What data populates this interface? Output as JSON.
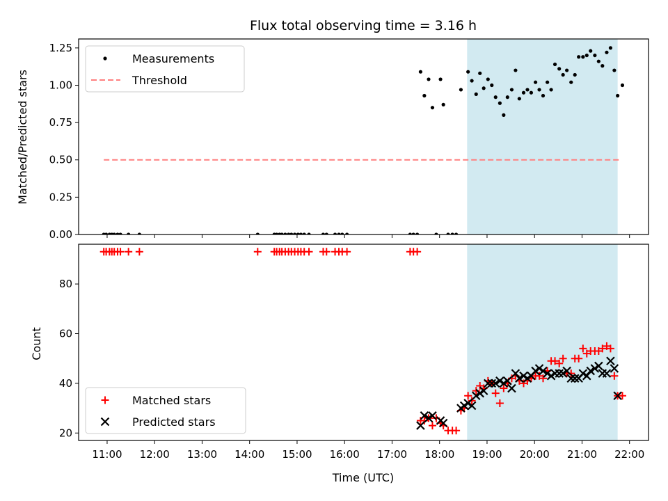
{
  "chart_data": {
    "title": "Flux total observing time = 3.16 h",
    "xlabel": "Time (UTC)",
    "x_unit": "hour of day (UTC)",
    "xlim": [
      10.4,
      22.4
    ],
    "x_ticks": [
      11,
      12,
      13,
      14,
      15,
      16,
      17,
      18,
      19,
      20,
      21,
      22
    ],
    "x_tick_labels": [
      "11:00",
      "12:00",
      "13:00",
      "14:00",
      "15:00",
      "16:00",
      "17:00",
      "18:00",
      "19:00",
      "20:00",
      "21:00",
      "22:00"
    ],
    "shaded_interval": {
      "x": [
        18.58,
        21.75
      ],
      "color": "#add8e6"
    },
    "panels": [
      {
        "name": "ratio",
        "type": "scatter",
        "ylabel": "Matched/Predicted stars",
        "ylim": [
          0,
          1.31
        ],
        "y_ticks": [
          0,
          0.25,
          0.5,
          0.75,
          1.0,
          1.25
        ],
        "y_tick_labels": [
          "0.00",
          "0.25",
          "0.50",
          "0.75",
          "1.00",
          "1.25"
        ],
        "legend_position": "upper left",
        "series": [
          {
            "name": "Measurements",
            "type": "scatter",
            "marker": "dot",
            "color": "#000000",
            "x": [
              10.93,
              10.98,
              11.05,
              11.1,
              11.15,
              11.22,
              11.28,
              11.45,
              11.68,
              14.17,
              14.52,
              14.57,
              14.63,
              14.68,
              14.75,
              14.82,
              14.88,
              14.95,
              15.02,
              15.08,
              15.15,
              15.25,
              15.55,
              15.62,
              15.8,
              15.88,
              15.95,
              16.05,
              17.38,
              17.45,
              17.53,
              17.6,
              17.68,
              17.77,
              17.85,
              17.93,
              18.02,
              18.08,
              18.18,
              18.27,
              18.35,
              18.45,
              18.6,
              18.68,
              18.77,
              18.85,
              18.93,
              19.02,
              19.1,
              19.18,
              19.27,
              19.35,
              19.43,
              19.52,
              19.6,
              19.68,
              19.77,
              19.85,
              19.93,
              20.02,
              20.1,
              20.18,
              20.27,
              20.35,
              20.43,
              20.52,
              20.6,
              20.68,
              20.77,
              20.85,
              20.93,
              21.02,
              21.1,
              21.18,
              21.27,
              21.35,
              21.43,
              21.52,
              21.6,
              21.68,
              21.75,
              21.85
            ],
            "y": [
              0,
              0,
              0,
              0,
              0,
              0,
              0,
              0,
              0,
              0,
              0,
              0,
              0,
              0,
              0,
              0,
              0,
              0,
              0,
              0,
              0,
              0,
              0,
              0,
              0,
              0,
              0,
              0,
              0,
              0,
              0,
              1.09,
              0.93,
              1.04,
              0.85,
              0,
              1.04,
              0.87,
              0,
              0,
              0,
              0.97,
              1.09,
              1.03,
              0.94,
              1.08,
              0.98,
              1.04,
              1.0,
              0.92,
              0.88,
              0.8,
              0.92,
              0.97,
              1.1,
              0.91,
              0.95,
              0.97,
              0.95,
              1.02,
              0.97,
              0.93,
              1.02,
              0.97,
              1.14,
              1.11,
              1.07,
              1.1,
              1.02,
              1.07,
              1.19,
              1.19,
              1.2,
              1.23,
              1.2,
              1.16,
              1.13,
              1.22,
              1.25,
              1.1,
              0.93,
              1.0
            ]
          },
          {
            "name": "Threshold",
            "type": "line",
            "style": "dashed",
            "color": "#ff7f7f",
            "x": [
              10.93,
              21.8
            ],
            "y": [
              0.5,
              0.5
            ]
          }
        ]
      },
      {
        "name": "count",
        "type": "scatter",
        "ylabel": "Count",
        "ylim": [
          17,
          96
        ],
        "y_ticks": [
          20,
          40,
          60,
          80
        ],
        "y_tick_labels": [
          "20",
          "40",
          "60",
          "80"
        ],
        "legend_position": "lower left",
        "series": [
          {
            "name": "Matched stars",
            "type": "scatter",
            "marker": "plus",
            "color": "#ff0000",
            "x": [
              10.93,
              10.98,
              11.05,
              11.1,
              11.15,
              11.22,
              11.28,
              11.45,
              11.68,
              14.17,
              14.52,
              14.57,
              14.63,
              14.68,
              14.75,
              14.82,
              14.88,
              14.95,
              15.02,
              15.08,
              15.15,
              15.25,
              15.55,
              15.62,
              15.8,
              15.88,
              15.95,
              16.05,
              17.38,
              17.45,
              17.53,
              17.6,
              17.68,
              17.77,
              17.85,
              17.93,
              18.02,
              18.08,
              18.18,
              18.27,
              18.35,
              18.45,
              18.52,
              18.6,
              18.68,
              18.77,
              18.85,
              18.93,
              19.02,
              19.1,
              19.18,
              19.27,
              19.35,
              19.43,
              19.52,
              19.6,
              19.68,
              19.77,
              19.85,
              19.93,
              20.02,
              20.1,
              20.18,
              20.27,
              20.35,
              20.43,
              20.52,
              20.6,
              20.68,
              20.77,
              20.85,
              20.93,
              21.02,
              21.1,
              21.18,
              21.27,
              21.35,
              21.43,
              21.52,
              21.6,
              21.68,
              21.75,
              21.85
            ],
            "y": [
              93,
              93,
              93,
              93,
              93,
              93,
              93,
              93,
              93,
              93,
              93,
              93,
              93,
              93,
              93,
              93,
              93,
              93,
              93,
              93,
              93,
              93,
              93,
              93,
              93,
              93,
              93,
              93,
              93,
              93,
              93,
              25,
              25,
              26,
              23,
              26,
              24,
              23,
              21,
              21,
              21,
              29,
              30,
              35,
              33,
              37,
              39,
              38,
              41,
              40,
              36,
              32,
              38,
              40,
              42,
              43,
              41,
              40,
              41,
              42,
              43,
              43,
              42,
              45,
              49,
              49,
              48,
              50,
              44,
              44,
              50,
              50,
              54,
              52,
              53,
              53,
              53,
              54,
              55,
              54,
              43,
              35,
              35
            ]
          },
          {
            "name": "Predicted stars",
            "type": "scatter",
            "marker": "x",
            "color": "#000000",
            "x": [
              17.6,
              17.68,
              17.77,
              17.85,
              18.02,
              18.08,
              18.45,
              18.52,
              18.6,
              18.68,
              18.77,
              18.85,
              18.93,
              19.02,
              19.1,
              19.18,
              19.27,
              19.35,
              19.43,
              19.52,
              19.6,
              19.68,
              19.77,
              19.85,
              19.93,
              20.02,
              20.1,
              20.18,
              20.27,
              20.35,
              20.43,
              20.52,
              20.6,
              20.68,
              20.77,
              20.85,
              20.93,
              21.02,
              21.1,
              21.18,
              21.27,
              21.35,
              21.43,
              21.52,
              21.6,
              21.68,
              21.75
            ],
            "y": [
              23,
              27,
              26,
              27,
              25,
              24,
              30,
              31,
              32,
              31,
              35,
              36,
              37,
              40,
              40,
              40,
              41,
              40,
              41,
              38,
              44,
              42,
              43,
              42,
              43,
              45,
              46,
              45,
              44,
              43,
              44,
              44,
              44,
              45,
              42,
              42,
              42,
              44,
              43,
              45,
              46,
              47,
              44,
              44,
              49,
              46,
              35
            ]
          }
        ]
      }
    ]
  }
}
